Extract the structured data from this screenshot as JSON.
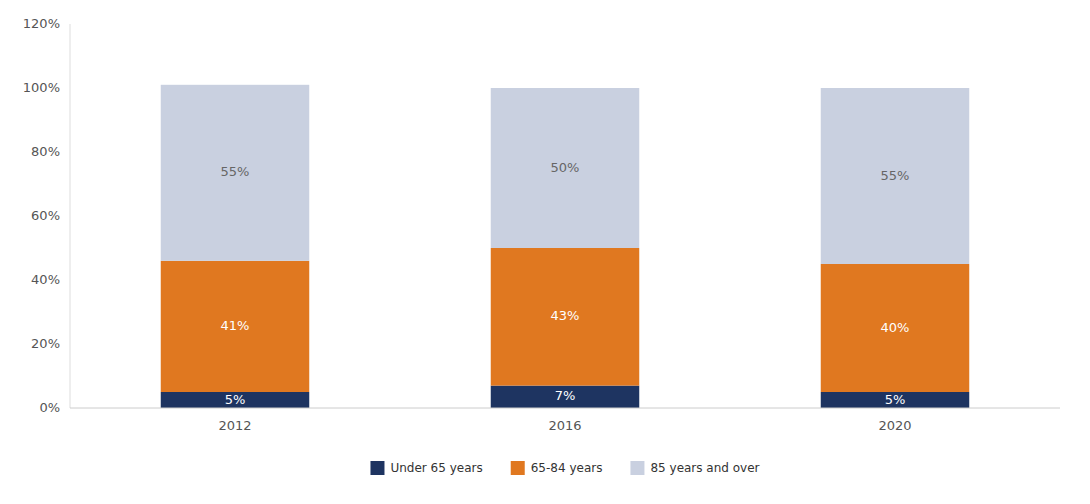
{
  "chart_data": {
    "type": "bar",
    "stacked": true,
    "data_labels": true,
    "grid": false,
    "legend": "bottom",
    "categories": [
      "2012",
      "2016",
      "2020"
    ],
    "series": [
      {
        "name": "Under 65 years",
        "color": "#1e3461",
        "values": [
          5,
          7,
          5
        ],
        "value_labels": [
          "5%",
          "7%",
          "5%"
        ]
      },
      {
        "name": "65-84 years",
        "color": "#e07820",
        "values": [
          41,
          43,
          40
        ],
        "value_labels": [
          "41%",
          "43%",
          "40%"
        ]
      },
      {
        "name": "85 years and over",
        "color": "#c9d0e0",
        "values": [
          55,
          50,
          55
        ],
        "value_labels": [
          "55%",
          "50%",
          "55%"
        ]
      }
    ],
    "ylim": [
      0,
      120
    ],
    "yticks": [
      {
        "value": 0,
        "label": "0%"
      },
      {
        "value": 20,
        "label": "20%"
      },
      {
        "value": 40,
        "label": "40%"
      },
      {
        "value": 60,
        "label": "60%"
      },
      {
        "value": 80,
        "label": "80%"
      },
      {
        "value": 100,
        "label": "100%"
      },
      {
        "value": 120,
        "label": "120%"
      }
    ]
  }
}
